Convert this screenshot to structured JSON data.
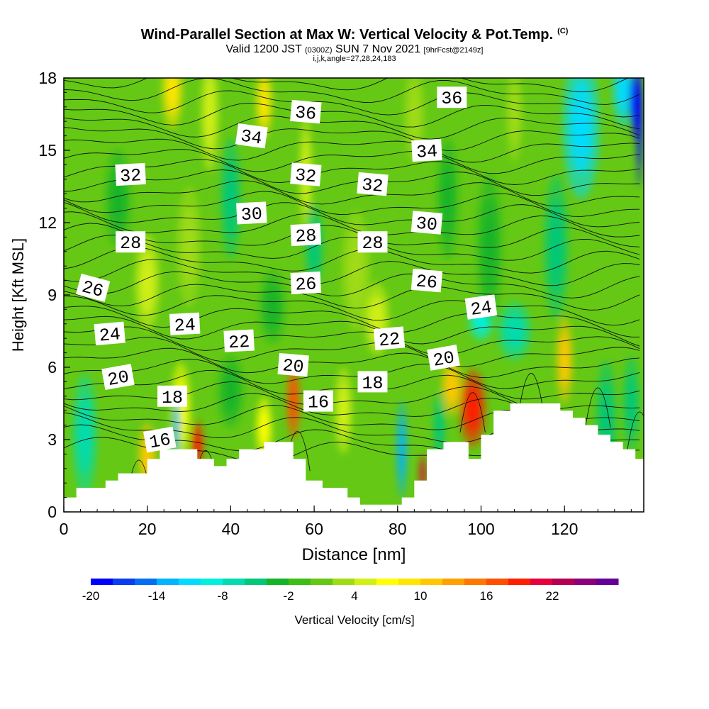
{
  "chart_data": {
    "type": "heatmap",
    "title": "Wind-Parallel Section at Max W: Vertical Velocity & Pot.Temp.",
    "title_tag": "(C)",
    "subtitle_main": "Valid 1200 JST",
    "subtitle_utc": "(0300Z)",
    "subtitle_date": "SUN 7 Nov 2021",
    "subtitle_fcst": "[9hrFcst@2149z]",
    "grid_info": "i,j,k,angle=27,28,24,183",
    "xlabel": "Distance [nm]",
    "ylabel": "Height [Kft MSL]",
    "xlim": [
      0,
      139
    ],
    "ylim": [
      0,
      18
    ],
    "x_ticks": [
      "0",
      "20",
      "40",
      "60",
      "80",
      "100",
      "120"
    ],
    "y_ticks": [
      "0",
      "3",
      "6",
      "9",
      "12",
      "15",
      "18"
    ],
    "colorbar_label": "Vertical Velocity [cm/s]",
    "colorbar_ticks": [
      "-20",
      "-14",
      "-8",
      "-2",
      "4",
      "10",
      "16",
      "22"
    ],
    "colorbar_colors": [
      "#0000ff",
      "#0a3cf0",
      "#0070f0",
      "#00b4ff",
      "#00dcff",
      "#00f0e0",
      "#00dcb0",
      "#00c878",
      "#14b428",
      "#3cbe14",
      "#64c814",
      "#a0dc14",
      "#d2f014",
      "#ffff00",
      "#ffe600",
      "#ffc800",
      "#ffa000",
      "#ff7800",
      "#ff5000",
      "#ff1e00",
      "#e6003c",
      "#b40050",
      "#8c0078",
      "#640096"
    ],
    "theta_labels": [
      {
        "text": "36",
        "x": 58,
        "y": 16.6,
        "rot": 5
      },
      {
        "text": "36",
        "x": 93,
        "y": 17.2,
        "rot": 0
      },
      {
        "text": "34",
        "x": 45,
        "y": 15.6,
        "rot": 8
      },
      {
        "text": "34",
        "x": 87,
        "y": 15.0,
        "rot": -3
      },
      {
        "text": "32",
        "x": 16,
        "y": 14.0,
        "rot": -3
      },
      {
        "text": "32",
        "x": 58,
        "y": 14.0,
        "rot": 5
      },
      {
        "text": "32",
        "x": 74,
        "y": 13.6,
        "rot": 5
      },
      {
        "text": "30",
        "x": 45,
        "y": 12.4,
        "rot": -3
      },
      {
        "text": "30",
        "x": 87,
        "y": 12.0,
        "rot": 5
      },
      {
        "text": "28",
        "x": 16,
        "y": 11.2,
        "rot": 0
      },
      {
        "text": "28",
        "x": 58,
        "y": 11.5,
        "rot": -3
      },
      {
        "text": "28",
        "x": 74,
        "y": 11.2,
        "rot": 0
      },
      {
        "text": "26",
        "x": 7,
        "y": 9.3,
        "rot": 15
      },
      {
        "text": "26",
        "x": 58,
        "y": 9.5,
        "rot": -3
      },
      {
        "text": "26",
        "x": 87,
        "y": 9.6,
        "rot": 5
      },
      {
        "text": "24",
        "x": 11,
        "y": 7.4,
        "rot": -5
      },
      {
        "text": "24",
        "x": 29,
        "y": 7.8,
        "rot": -3
      },
      {
        "text": "24",
        "x": 100,
        "y": 8.5,
        "rot": -8
      },
      {
        "text": "22",
        "x": 42,
        "y": 7.1,
        "rot": -3
      },
      {
        "text": "22",
        "x": 78,
        "y": 7.2,
        "rot": -5
      },
      {
        "text": "20",
        "x": 13,
        "y": 5.6,
        "rot": -10
      },
      {
        "text": "20",
        "x": 55,
        "y": 6.1,
        "rot": 5
      },
      {
        "text": "20",
        "x": 91,
        "y": 6.4,
        "rot": -10
      },
      {
        "text": "18",
        "x": 26,
        "y": 4.8,
        "rot": 0
      },
      {
        "text": "18",
        "x": 74,
        "y": 5.4,
        "rot": 0
      },
      {
        "text": "16",
        "x": 23,
        "y": 3.0,
        "rot": -10
      },
      {
        "text": "16",
        "x": 61,
        "y": 4.6,
        "rot": 0
      }
    ],
    "terrain": [
      [
        0,
        0.6
      ],
      [
        3,
        0.6
      ],
      [
        3,
        1.0
      ],
      [
        10,
        1.0
      ],
      [
        10,
        1.3
      ],
      [
        13,
        1.3
      ],
      [
        13,
        1.6
      ],
      [
        20,
        1.6
      ],
      [
        20,
        2.2
      ],
      [
        23,
        2.2
      ],
      [
        23,
        2.6
      ],
      [
        26,
        2.6
      ],
      [
        26,
        2.6
      ],
      [
        32,
        2.6
      ],
      [
        32,
        2.2
      ],
      [
        36,
        2.2
      ],
      [
        36,
        1.9
      ],
      [
        39,
        1.9
      ],
      [
        39,
        2.2
      ],
      [
        42,
        2.2
      ],
      [
        42,
        2.6
      ],
      [
        48,
        2.6
      ],
      [
        48,
        2.9
      ],
      [
        55,
        2.9
      ],
      [
        55,
        2.2
      ],
      [
        58,
        2.2
      ],
      [
        58,
        1.3
      ],
      [
        62,
        1.3
      ],
      [
        62,
        1.0
      ],
      [
        68,
        1.0
      ],
      [
        68,
        0.6
      ],
      [
        71,
        0.6
      ],
      [
        71,
        0.3
      ],
      [
        81,
        0.3
      ],
      [
        81,
        0.6
      ],
      [
        84,
        0.6
      ],
      [
        84,
        1.3
      ],
      [
        87,
        1.3
      ],
      [
        87,
        2.6
      ],
      [
        91,
        2.6
      ],
      [
        91,
        2.9
      ],
      [
        97,
        2.9
      ],
      [
        97,
        2.2
      ],
      [
        100,
        2.2
      ],
      [
        100,
        3.2
      ],
      [
        103,
        3.2
      ],
      [
        103,
        4.2
      ],
      [
        107,
        4.2
      ],
      [
        107,
        4.5
      ],
      [
        119,
        4.5
      ],
      [
        119,
        4.2
      ],
      [
        122,
        4.2
      ],
      [
        122,
        3.9
      ],
      [
        125,
        3.9
      ],
      [
        125,
        3.6
      ],
      [
        128,
        3.6
      ],
      [
        128,
        3.2
      ],
      [
        131,
        3.2
      ],
      [
        131,
        2.9
      ],
      [
        134,
        2.9
      ],
      [
        134,
        2.6
      ],
      [
        137,
        2.6
      ],
      [
        137,
        2.2
      ],
      [
        139,
        2.2
      ],
      [
        139,
        0
      ]
    ],
    "w_blobs": [
      {
        "x": 20,
        "y": 2.3,
        "sx": 2.2,
        "sy": 1.4,
        "w": 10
      },
      {
        "x": 32,
        "y": 2.8,
        "sx": 1.5,
        "sy": 1.0,
        "w": 18
      },
      {
        "x": 28,
        "y": 4.2,
        "sx": 2.5,
        "sy": 2.0,
        "w": 6
      },
      {
        "x": 55,
        "y": 4.6,
        "sx": 1.6,
        "sy": 1.6,
        "w": 16
      },
      {
        "x": 48,
        "y": 3.5,
        "sx": 2.0,
        "sy": 1.3,
        "w": 6
      },
      {
        "x": 67,
        "y": 4.2,
        "sx": 2.2,
        "sy": 1.8,
        "w": 5
      },
      {
        "x": 98,
        "y": 4.3,
        "sx": 3.2,
        "sy": 1.6,
        "w": 18
      },
      {
        "x": 93,
        "y": 5.2,
        "sx": 2.5,
        "sy": 1.2,
        "w": 10
      },
      {
        "x": 120,
        "y": 6.3,
        "sx": 2.0,
        "sy": 1.8,
        "w": 10
      },
      {
        "x": 86,
        "y": 1.6,
        "sx": 0.8,
        "sy": 0.8,
        "w": 20
      },
      {
        "x": 81,
        "y": 2.6,
        "sx": 1.3,
        "sy": 2.0,
        "w": -14
      },
      {
        "x": 90,
        "y": 3.5,
        "sx": 1.5,
        "sy": 1.5,
        "w": -5
      },
      {
        "x": 27,
        "y": 3.5,
        "sx": 0.9,
        "sy": 1.5,
        "w": -14
      },
      {
        "x": 5,
        "y": 3.2,
        "sx": 3.0,
        "sy": 2.5,
        "w": -8
      },
      {
        "x": 40,
        "y": 5.0,
        "sx": 3.0,
        "sy": 1.5,
        "w": -4
      },
      {
        "x": 130,
        "y": 3.8,
        "sx": 2.5,
        "sy": 2.5,
        "w": -6
      },
      {
        "x": 136,
        "y": 4.5,
        "sx": 2.0,
        "sy": 2.0,
        "w": -5
      },
      {
        "x": 108,
        "y": 7.5,
        "sx": 4.0,
        "sy": 1.2,
        "w": -8
      },
      {
        "x": 100,
        "y": 8.0,
        "sx": 3.0,
        "sy": 0.9,
        "w": -9
      },
      {
        "x": 124,
        "y": 16.0,
        "sx": 4.5,
        "sy": 3.0,
        "w": -11
      },
      {
        "x": 134,
        "y": 17.5,
        "sx": 2.5,
        "sy": 1.5,
        "w": -12
      },
      {
        "x": 137,
        "y": 17.0,
        "sx": 1.5,
        "sy": 1.5,
        "w": -20
      },
      {
        "x": 138,
        "y": 16.0,
        "sx": 0.8,
        "sy": 2.5,
        "w": -20
      },
      {
        "x": 26,
        "y": 17.5,
        "sx": 2.5,
        "sy": 1.6,
        "w": 9
      },
      {
        "x": 35,
        "y": 16.5,
        "sx": 2.2,
        "sy": 2.4,
        "w": 4
      },
      {
        "x": 48,
        "y": 17.0,
        "sx": 2.0,
        "sy": 1.5,
        "w": 8
      },
      {
        "x": 58,
        "y": 14.0,
        "sx": 1.6,
        "sy": 2.4,
        "w": 5
      },
      {
        "x": 84,
        "y": 16.5,
        "sx": 2.5,
        "sy": 2.0,
        "w": 3
      },
      {
        "x": 108,
        "y": 16.5,
        "sx": 2.0,
        "sy": 2.0,
        "w": 2
      },
      {
        "x": 30,
        "y": 11.0,
        "sx": 3.0,
        "sy": 2.5,
        "w": 3
      },
      {
        "x": 20,
        "y": 9.5,
        "sx": 3.0,
        "sy": 2.0,
        "w": 4
      },
      {
        "x": 70,
        "y": 10.0,
        "sx": 3.5,
        "sy": 2.5,
        "w": 3
      },
      {
        "x": 13,
        "y": 13.0,
        "sx": 3.0,
        "sy": 2.0,
        "w": -4
      },
      {
        "x": 40,
        "y": 13.0,
        "sx": 2.5,
        "sy": 2.5,
        "w": -5
      },
      {
        "x": 60,
        "y": 11.0,
        "sx": 2.2,
        "sy": 1.8,
        "w": -6
      },
      {
        "x": 92,
        "y": 13.0,
        "sx": 2.5,
        "sy": 2.5,
        "w": -4
      },
      {
        "x": 102,
        "y": 11.0,
        "sx": 3.0,
        "sy": 3.0,
        "w": -4
      },
      {
        "x": 118,
        "y": 11.0,
        "sx": 3.0,
        "sy": 3.0,
        "w": -5
      },
      {
        "x": 75,
        "y": 8.0,
        "sx": 3.0,
        "sy": 1.5,
        "w": 4
      },
      {
        "x": 50,
        "y": 8.5,
        "sx": 3.0,
        "sy": 1.5,
        "w": -4
      }
    ]
  }
}
